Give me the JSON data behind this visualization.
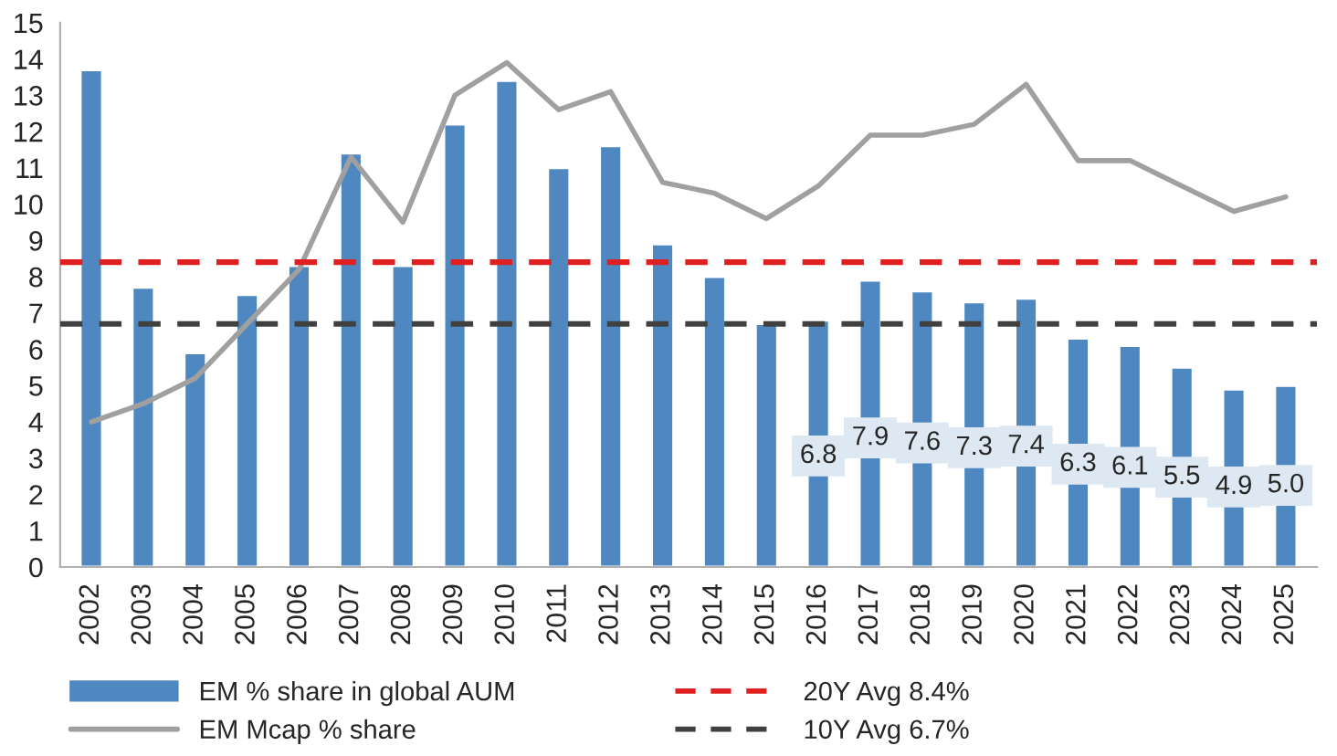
{
  "chart_data": {
    "type": "bar",
    "categories": [
      "2002",
      "2003",
      "2004",
      "2005",
      "2006",
      "2007",
      "2008",
      "2009",
      "2010",
      "2011",
      "2012",
      "2013",
      "2014",
      "2015",
      "2016",
      "2017",
      "2018",
      "2019",
      "2020",
      "2021",
      "2022",
      "2023",
      "2024",
      "2025"
    ],
    "series": [
      {
        "name": "EM % share in global AUM",
        "color": "#4f88c0",
        "values": [
          13.7,
          7.7,
          5.9,
          7.5,
          8.3,
          11.4,
          8.3,
          12.2,
          13.4,
          11.0,
          11.6,
          8.9,
          8.0,
          6.7,
          6.8,
          7.9,
          7.6,
          7.3,
          7.4,
          6.3,
          6.1,
          5.5,
          4.9,
          5.0
        ],
        "value_labels": [
          null,
          null,
          null,
          null,
          null,
          null,
          null,
          null,
          null,
          null,
          null,
          null,
          null,
          null,
          "6.8",
          "7.9",
          "7.6",
          "7.3",
          "7.4",
          "6.3",
          "6.1",
          "5.5",
          "4.9",
          "5.0"
        ]
      },
      {
        "name": "EM Mcap % share",
        "type": "line",
        "color": "#a0a0a0",
        "values": [
          4.0,
          4.5,
          5.2,
          6.7,
          8.2,
          11.3,
          9.5,
          13.0,
          13.9,
          12.6,
          13.1,
          10.6,
          10.3,
          9.6,
          10.5,
          11.9,
          11.9,
          12.2,
          13.3,
          11.2,
          11.2,
          10.5,
          9.8,
          10.2
        ]
      }
    ],
    "ref_lines": [
      {
        "axis": "y",
        "value": 8.4,
        "label": "20Y Avg 8.4%",
        "color": "#e02020",
        "line_style": "dashed"
      },
      {
        "axis": "y",
        "value": 6.7,
        "label": "10Y Avg 6.7%",
        "color": "#404040",
        "line_style": "dashed"
      }
    ],
    "ylim": [
      0,
      15
    ],
    "yticks": [
      0,
      1,
      2,
      3,
      4,
      5,
      6,
      7,
      8,
      9,
      10,
      11,
      12,
      13,
      14,
      15
    ],
    "grid": false,
    "legend": "bottom"
  }
}
